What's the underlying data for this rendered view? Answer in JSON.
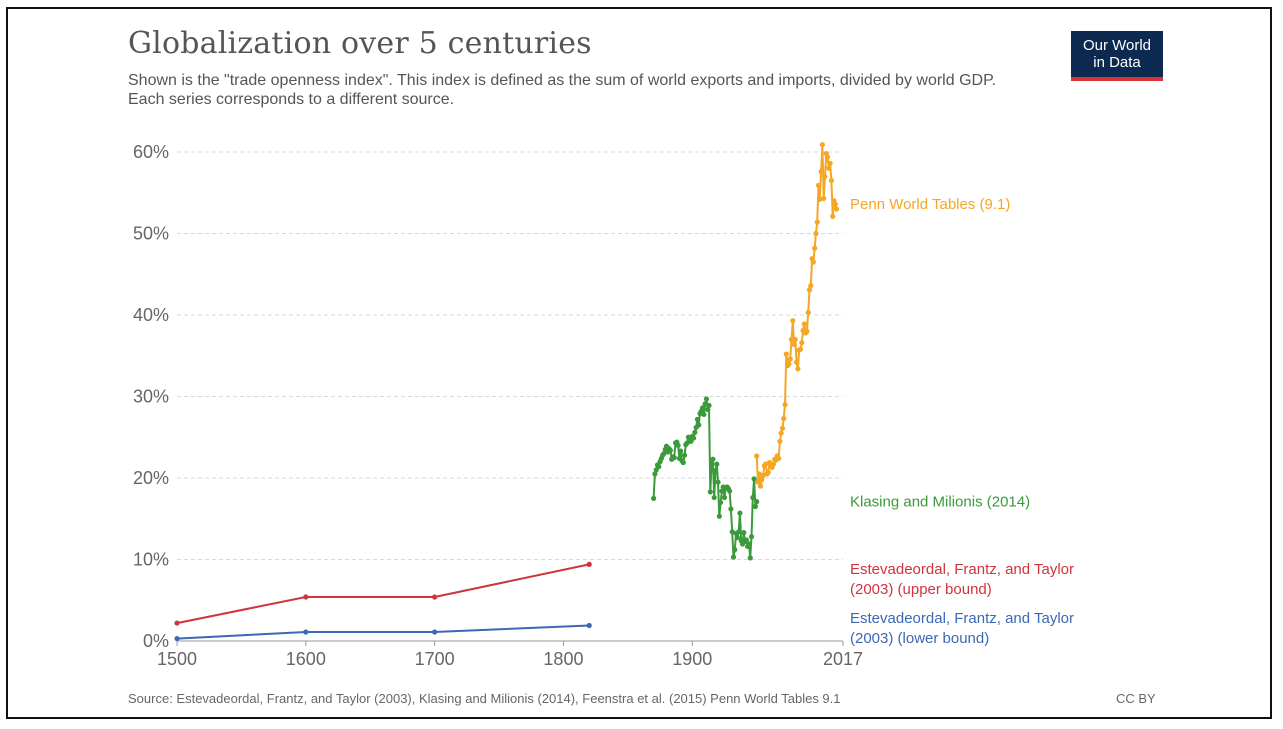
{
  "header": {
    "title": "Globalization over 5 centuries",
    "subtitle": "Shown is the \"trade openness index\". This index is defined as the sum of world exports and imports, divided by world GDP. Each series corresponds to a different source.",
    "logo_line1": "Our World",
    "logo_line2": "in Data"
  },
  "footer": {
    "source": "Source: Estevadeordal, Frantz, and Taylor (2003), Klasing and Milionis (2014), Feenstra et al. (2015) Penn World Tables 9.1",
    "license": "CC BY"
  },
  "colors": {
    "penn": "#f5a623",
    "klasing": "#3b9a3b",
    "upper": "#d0343c",
    "lower": "#3d68b4",
    "grid": "#d9d9d9",
    "logo_bg": "#0c2a4f",
    "logo_bar": "#d73338"
  },
  "chart_data": {
    "type": "line",
    "title": "Globalization over 5 centuries",
    "xlabel": "",
    "ylabel": "",
    "xlim": [
      1500,
      2017
    ],
    "ylim": [
      0,
      60
    ],
    "x_ticks": [
      "1500",
      "1600",
      "1700",
      "1800",
      "1900",
      "2017"
    ],
    "y_ticks": [
      "0%",
      "10%",
      "20%",
      "30%",
      "40%",
      "50%",
      "60%"
    ],
    "y_tick_values": [
      0,
      10,
      20,
      30,
      40,
      50,
      60
    ],
    "x_tick_values": [
      1500,
      1600,
      1700,
      1800,
      1900,
      2017
    ],
    "grid": true,
    "legend": "inline-right",
    "series": [
      {
        "name": "Penn World Tables (9.1)",
        "label_lines": [
          "Penn World Tables (9.1)"
        ],
        "color_key": "penn",
        "label_y": 53,
        "points": [
          [
            1950,
            22.7
          ],
          [
            1951,
            19.5
          ],
          [
            1952,
            20.5
          ],
          [
            1953,
            19.0
          ],
          [
            1954,
            19.8
          ],
          [
            1955,
            20.3
          ],
          [
            1956,
            21.5
          ],
          [
            1957,
            21.7
          ],
          [
            1958,
            20.5
          ],
          [
            1959,
            20.7
          ],
          [
            1960,
            21.9
          ],
          [
            1961,
            21.5
          ],
          [
            1962,
            21.3
          ],
          [
            1963,
            21.7
          ],
          [
            1964,
            22.3
          ],
          [
            1965,
            22.2
          ],
          [
            1966,
            22.7
          ],
          [
            1967,
            22.4
          ],
          [
            1968,
            24.5
          ],
          [
            1969,
            25.5
          ],
          [
            1970,
            26.1
          ],
          [
            1971,
            27.3
          ],
          [
            1972,
            29.0
          ],
          [
            1973,
            35.2
          ],
          [
            1974,
            33.8
          ],
          [
            1975,
            34.0
          ],
          [
            1976,
            34.6
          ],
          [
            1977,
            37.0
          ],
          [
            1978,
            39.3
          ],
          [
            1979,
            36.4
          ],
          [
            1980,
            37.0
          ],
          [
            1981,
            34.2
          ],
          [
            1982,
            33.4
          ],
          [
            1983,
            35.7
          ],
          [
            1984,
            35.8
          ],
          [
            1985,
            36.6
          ],
          [
            1986,
            38.1
          ],
          [
            1987,
            38.9
          ],
          [
            1988,
            37.8
          ],
          [
            1989,
            38.0
          ],
          [
            1990,
            40.3
          ],
          [
            1991,
            43.1
          ],
          [
            1992,
            43.6
          ],
          [
            1993,
            46.9
          ],
          [
            1994,
            46.5
          ],
          [
            1995,
            48.2
          ],
          [
            1996,
            50.0
          ],
          [
            1997,
            51.4
          ],
          [
            1998,
            55.9
          ],
          [
            1999,
            54.2
          ],
          [
            2000,
            57.6
          ],
          [
            2001,
            60.9
          ],
          [
            2002,
            54.3
          ],
          [
            2003,
            57.0
          ],
          [
            2004,
            59.8
          ],
          [
            2005,
            59.4
          ],
          [
            2006,
            58.0
          ],
          [
            2007,
            58.6
          ],
          [
            2008,
            56.5
          ],
          [
            2009,
            52.1
          ],
          [
            2010,
            54.0
          ],
          [
            2011,
            53.6
          ],
          [
            2012,
            53.0
          ]
        ]
      },
      {
        "name": "Klasing and Milionis (2014)",
        "label_lines": [
          "Klasing and Milionis (2014)"
        ],
        "color_key": "klasing",
        "label_y": 16.5,
        "points": [
          [
            1870,
            17.5
          ],
          [
            1871,
            20.5
          ],
          [
            1872,
            21.0
          ],
          [
            1873,
            21.6
          ],
          [
            1874,
            21.4
          ],
          [
            1875,
            22.0
          ],
          [
            1876,
            22.4
          ],
          [
            1877,
            22.8
          ],
          [
            1878,
            23.0
          ],
          [
            1879,
            23.5
          ],
          [
            1880,
            23.9
          ],
          [
            1881,
            23.2
          ],
          [
            1882,
            23.6
          ],
          [
            1883,
            23.4
          ],
          [
            1884,
            22.3
          ],
          [
            1885,
            22.6
          ],
          [
            1886,
            22.5
          ],
          [
            1887,
            24.3
          ],
          [
            1888,
            24.4
          ],
          [
            1889,
            24.0
          ],
          [
            1890,
            22.4
          ],
          [
            1891,
            23.3
          ],
          [
            1892,
            22.1
          ],
          [
            1893,
            21.9
          ],
          [
            1894,
            22.8
          ],
          [
            1895,
            24.1
          ],
          [
            1896,
            24.3
          ],
          [
            1897,
            25.0
          ],
          [
            1898,
            24.7
          ],
          [
            1899,
            24.5
          ],
          [
            1900,
            25.1
          ],
          [
            1901,
            24.9
          ],
          [
            1902,
            25.6
          ],
          [
            1903,
            26.2
          ],
          [
            1904,
            27.2
          ],
          [
            1905,
            26.5
          ],
          [
            1906,
            27.9
          ],
          [
            1907,
            28.2
          ],
          [
            1908,
            28.6
          ],
          [
            1909,
            27.8
          ],
          [
            1910,
            29.1
          ],
          [
            1911,
            29.7
          ],
          [
            1912,
            28.4
          ],
          [
            1913,
            28.9
          ],
          [
            1914,
            18.3
          ],
          [
            1915,
            21.8
          ],
          [
            1916,
            22.3
          ],
          [
            1917,
            17.6
          ],
          [
            1918,
            20.9
          ],
          [
            1919,
            21.7
          ],
          [
            1920,
            19.5
          ],
          [
            1921,
            15.3
          ],
          [
            1922,
            17.0
          ],
          [
            1923,
            18.4
          ],
          [
            1924,
            18.9
          ],
          [
            1925,
            17.6
          ],
          [
            1926,
            18.8
          ],
          [
            1927,
            18.9
          ],
          [
            1928,
            18.7
          ],
          [
            1929,
            18.4
          ],
          [
            1930,
            16.2
          ],
          [
            1931,
            13.4
          ],
          [
            1932,
            10.3
          ],
          [
            1933,
            11.2
          ],
          [
            1934,
            13.2
          ],
          [
            1935,
            12.7
          ],
          [
            1936,
            13.4
          ],
          [
            1937,
            15.7
          ],
          [
            1938,
            12.3
          ],
          [
            1939,
            11.9
          ],
          [
            1940,
            13.3
          ],
          [
            1941,
            12.2
          ],
          [
            1942,
            12.4
          ],
          [
            1943,
            11.6
          ],
          [
            1944,
            11.9
          ],
          [
            1945,
            10.2
          ],
          [
            1946,
            12.8
          ],
          [
            1947,
            17.6
          ],
          [
            1948,
            19.9
          ],
          [
            1949,
            16.5
          ],
          [
            1950,
            17.1
          ]
        ]
      },
      {
        "name": "Estevadeordal, Frantz, and Taylor (2003) (upper bound)",
        "label_lines": [
          "Estevadeordal, Frantz, and Taylor",
          "(2003) (upper bound)"
        ],
        "color_key": "upper",
        "label_y": 8.2,
        "points": [
          [
            1500,
            2.2
          ],
          [
            1600,
            5.4
          ],
          [
            1700,
            5.4
          ],
          [
            1820,
            9.4
          ]
        ]
      },
      {
        "name": "Estevadeordal, Frantz, and Taylor (2003) (lower bound)",
        "label_lines": [
          "Estevadeordal, Frantz, and Taylor",
          "(2003) (lower bound)"
        ],
        "color_key": "lower",
        "label_y": 2.2,
        "points": [
          [
            1500,
            0.3
          ],
          [
            1600,
            1.1
          ],
          [
            1700,
            1.1
          ],
          [
            1820,
            1.9
          ]
        ]
      }
    ]
  }
}
